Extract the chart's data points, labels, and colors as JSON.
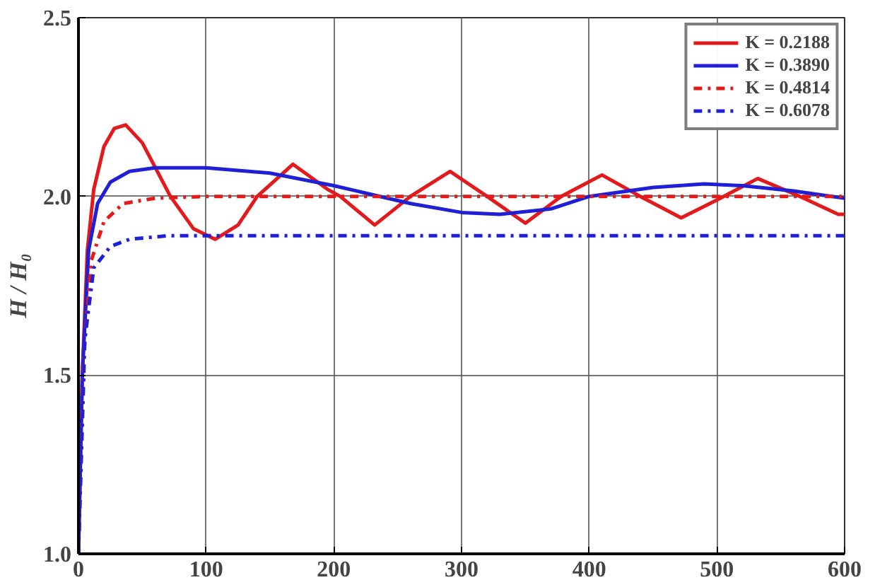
{
  "chart_data": {
    "type": "line",
    "ylabel": "H / H₀",
    "xlim": [
      0,
      600
    ],
    "ylim": [
      1.0,
      2.5
    ],
    "xticks": [
      0,
      100,
      200,
      300,
      400,
      500,
      600
    ],
    "yticks": [
      {
        "value": 1.0,
        "label": "1.0"
      },
      {
        "value": 1.5,
        "label": "1.5"
      },
      {
        "value": 2.0,
        "label": "2.0"
      },
      {
        "value": 2.5,
        "label": "2.5"
      }
    ],
    "grid": true,
    "legend": "top right",
    "series": [
      {
        "name": "K = 0.2188",
        "color": "#e31a1c",
        "line_style": "solid",
        "x": [
          0,
          3,
          7,
          12,
          20,
          28,
          37,
          50,
          72,
          90,
          107,
          125,
          140,
          168,
          195,
          205,
          232,
          260,
          291,
          320,
          350,
          378,
          410,
          440,
          472,
          500,
          532,
          565,
          595,
          600
        ],
        "values": [
          1.0,
          1.5,
          1.85,
          2.02,
          2.14,
          2.19,
          2.2,
          2.15,
          2.0,
          1.91,
          1.88,
          1.92,
          2.0,
          2.09,
          2.02,
          2.0,
          1.92,
          2.0,
          2.07,
          2.0,
          1.925,
          2.0,
          2.06,
          2.0,
          1.94,
          1.99,
          2.05,
          2.0,
          1.95,
          1.95
        ]
      },
      {
        "name": "K = 0.3890",
        "color": "#1f1fd6",
        "line_style": "solid",
        "x": [
          0,
          3,
          8,
          15,
          25,
          40,
          60,
          100,
          150,
          200,
          260,
          300,
          330,
          370,
          400,
          450,
          490,
          520,
          560,
          600
        ],
        "values": [
          1.0,
          1.5,
          1.85,
          1.98,
          2.04,
          2.07,
          2.08,
          2.08,
          2.065,
          2.03,
          1.98,
          1.955,
          1.95,
          1.965,
          2.0,
          2.025,
          2.035,
          2.03,
          2.015,
          1.995
        ]
      },
      {
        "name": "K = 0.4814",
        "color": "#e31a1c",
        "line_style": "dashed",
        "x": [
          0,
          4,
          10,
          20,
          35,
          60,
          100,
          600
        ],
        "values": [
          1.0,
          1.55,
          1.82,
          1.93,
          1.98,
          1.995,
          2.0,
          2.0
        ]
      },
      {
        "name": "K = 0.6078",
        "color": "#1f1fd6",
        "line_style": "dashed",
        "x": [
          0,
          5,
          12,
          25,
          40,
          70,
          600
        ],
        "values": [
          1.0,
          1.6,
          1.8,
          1.86,
          1.88,
          1.89,
          1.89
        ]
      }
    ]
  }
}
